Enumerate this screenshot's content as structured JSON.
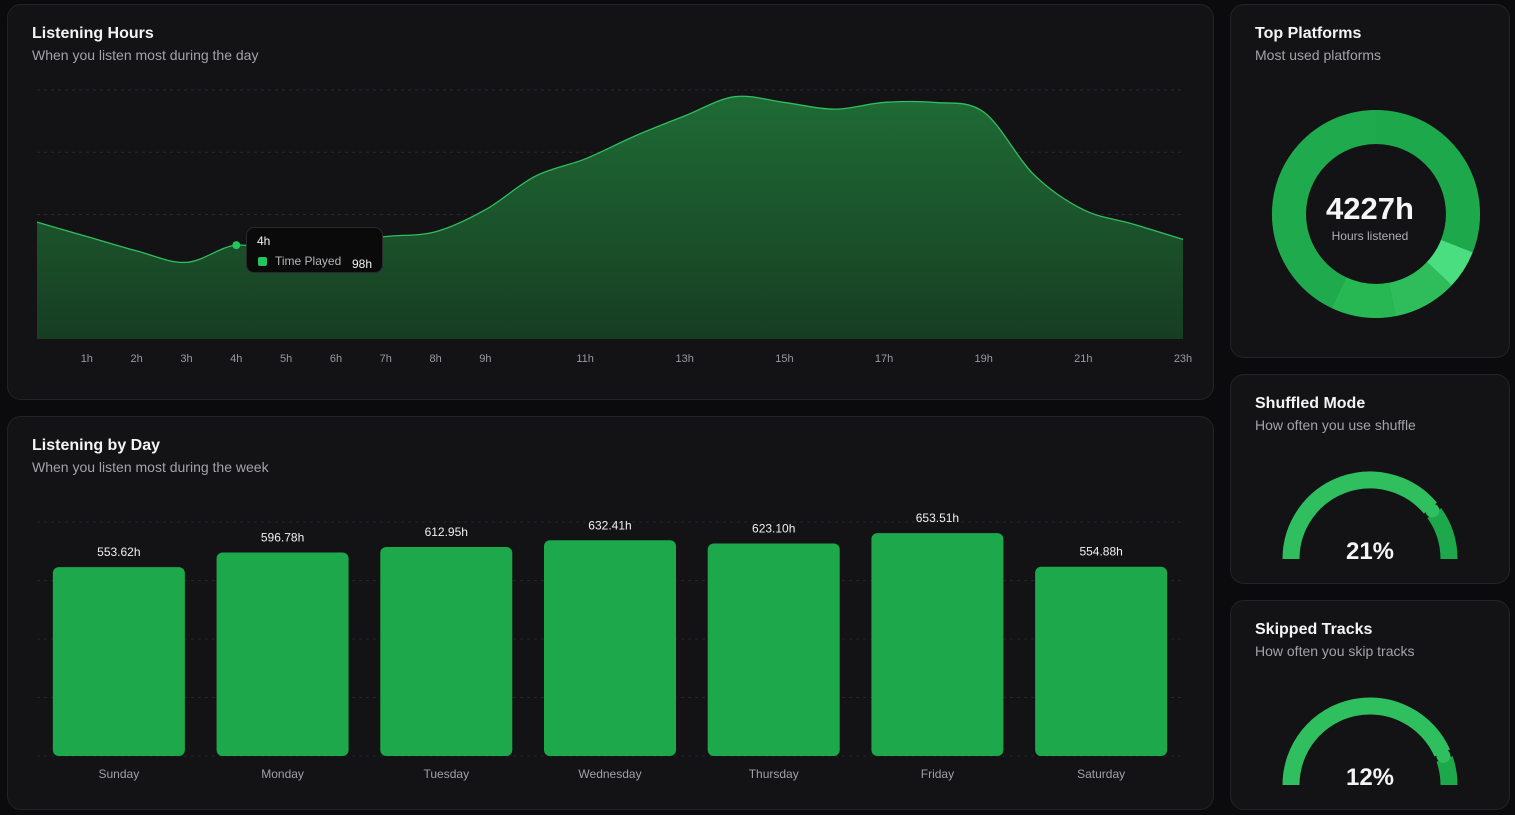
{
  "hours_card": {
    "title": "Listening Hours",
    "subtitle": "When you listen most during the day",
    "tooltip": {
      "title": "4h",
      "label": "Time Played",
      "value": "98h"
    }
  },
  "day_card": {
    "title": "Listening by Day",
    "subtitle": "When you listen most during the week"
  },
  "platforms_card": {
    "title": "Top Platforms",
    "subtitle": "Most used platforms",
    "center_value": "4227h",
    "center_label": "Hours listened",
    "segments": [
      {
        "share": 0.31,
        "color": "#1ea84c"
      },
      {
        "share": 0.06,
        "color": "#4ade80"
      },
      {
        "share": 0.1,
        "color": "#2fbd5c"
      },
      {
        "share": 0.1,
        "color": "#27b854"
      },
      {
        "share": 0.43,
        "color": "#1faa4d"
      }
    ]
  },
  "shuffle_card": {
    "title": "Shuffled Mode",
    "subtitle": "How often you use shuffle",
    "value_label": "21%",
    "value": 0.21
  },
  "skip_card": {
    "title": "Skipped Tracks",
    "subtitle": "How often you skip tracks",
    "value_label": "12%",
    "value": 0.12
  },
  "colors": {
    "accent": "#1ea84c",
    "accent_light": "#22c55e",
    "area_top": "#1f6b35",
    "area_bottom": "#173d22",
    "card": "#131315"
  },
  "chart_data": [
    {
      "type": "area",
      "title": "Listening Hours",
      "x": [
        0,
        1,
        2,
        3,
        4,
        5,
        6,
        7,
        8,
        9,
        10,
        11,
        12,
        13,
        14,
        15,
        16,
        17,
        18,
        19,
        20,
        21,
        22,
        23
      ],
      "x_tick_labels": [
        "1h",
        "2h",
        "3h",
        "4h",
        "5h",
        "6h",
        "7h",
        "8h",
        "9h",
        "11h",
        "13h",
        "15h",
        "17h",
        "19h",
        "21h",
        "23h"
      ],
      "series": [
        {
          "name": "Time Played",
          "values": [
            122,
            107,
            92,
            80,
            98,
            90,
            100,
            107,
            112,
            135,
            170,
            188,
            212,
            233,
            253,
            247,
            240,
            247,
            247,
            237,
            172,
            135,
            120,
            104
          ]
        }
      ],
      "grid": true,
      "highlight": {
        "x": 4,
        "label": "4h",
        "value": 98
      }
    },
    {
      "type": "bar",
      "title": "Listening by Day",
      "categories": [
        "Sunday",
        "Monday",
        "Tuesday",
        "Wednesday",
        "Thursday",
        "Friday",
        "Saturday"
      ],
      "values": [
        553.62,
        596.78,
        612.95,
        632.41,
        623.1,
        653.51,
        554.88
      ],
      "value_labels": [
        "553.62h",
        "596.78h",
        "612.95h",
        "632.41h",
        "623.10h",
        "653.51h",
        "554.88h"
      ],
      "ylim": [
        0,
        700
      ],
      "grid": true
    }
  ]
}
